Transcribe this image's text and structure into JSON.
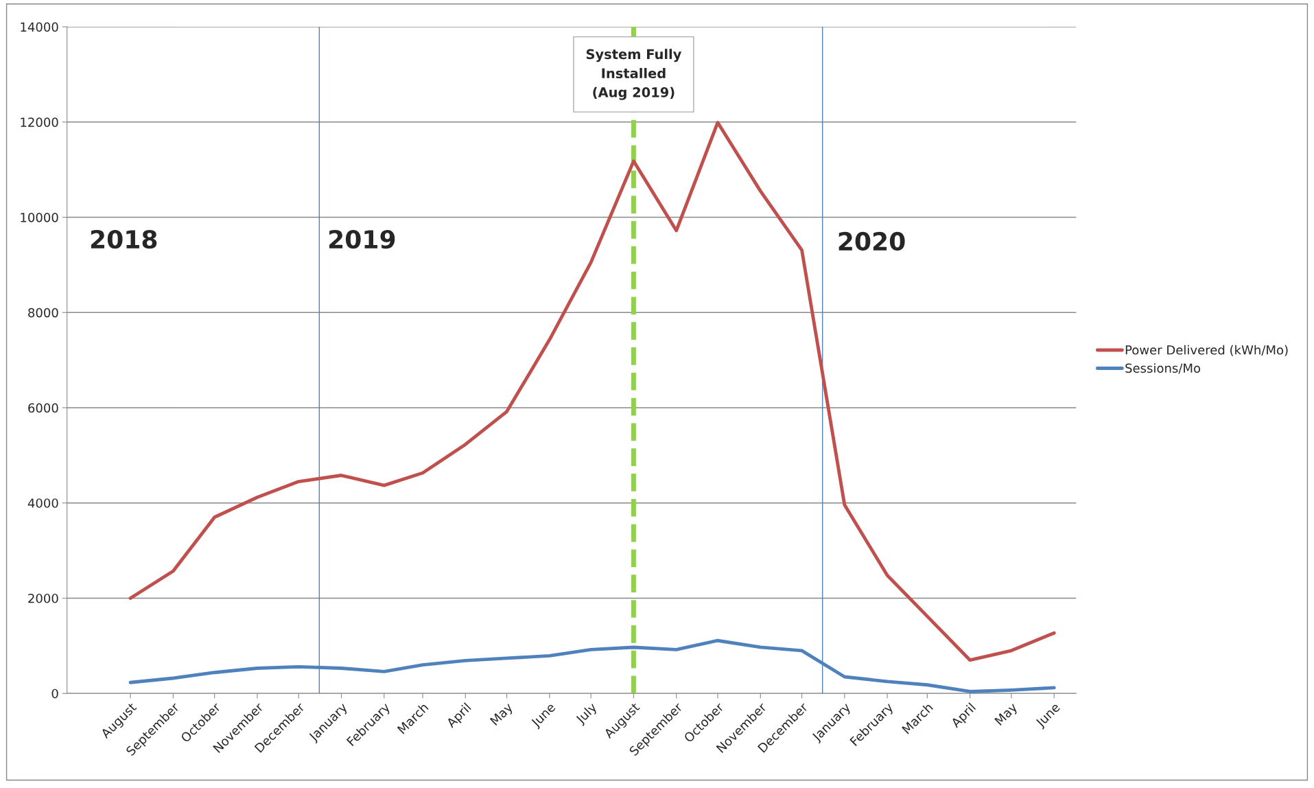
{
  "chart_data": {
    "type": "line",
    "x": [
      "2018-08",
      "2018-09",
      "2018-10",
      "2018-11",
      "2018-12",
      "2019-01",
      "2019-02",
      "2019-03",
      "2019-04",
      "2019-05",
      "2019-06",
      "2019-07",
      "2019-08",
      "2019-09",
      "2019-10",
      "2019-11",
      "2019-12",
      "2020-01",
      "2020-02",
      "2020-03",
      "2020-04",
      "2020-05",
      "2020-06"
    ],
    "series": [
      {
        "name": "Power Delivered (kWh/Mo)",
        "color": "#c0504d",
        "values": [
          2000,
          2570,
          3700,
          4120,
          4450,
          4580,
          4370,
          4630,
          5230,
          5920,
          7430,
          9050,
          11180,
          9720,
          11990,
          10550,
          9310,
          3960,
          2480,
          1620,
          700,
          900,
          1270
        ]
      },
      {
        "name": "Sessions/Mo",
        "color": "#4f81bd",
        "values": [
          230,
          320,
          440,
          530,
          560,
          530,
          460,
          600,
          690,
          740,
          790,
          920,
          970,
          920,
          1110,
          970,
          900,
          350,
          250,
          180,
          40,
          70,
          120
        ]
      }
    ],
    "xlim": [
      "2018-06-16",
      "2020-06-17"
    ],
    "xticks": [
      {
        "value": "2018-08",
        "label": "August"
      },
      {
        "value": "2018-09",
        "label": "September"
      },
      {
        "value": "2018-10",
        "label": "October"
      },
      {
        "value": "2018-11",
        "label": "November"
      },
      {
        "value": "2018-12",
        "label": "December"
      },
      {
        "value": "2019-01",
        "label": "January"
      },
      {
        "value": "2019-02",
        "label": "February"
      },
      {
        "value": "2019-03",
        "label": "March"
      },
      {
        "value": "2019-04",
        "label": "April"
      },
      {
        "value": "2019-05",
        "label": "May"
      },
      {
        "value": "2019-06",
        "label": "June"
      },
      {
        "value": "2019-07",
        "label": "July"
      },
      {
        "value": "2019-08",
        "label": "August"
      },
      {
        "value": "2019-09",
        "label": "September"
      },
      {
        "value": "2019-10",
        "label": "October"
      },
      {
        "value": "2019-11",
        "label": "November"
      },
      {
        "value": "2019-12",
        "label": "December"
      },
      {
        "value": "2020-01",
        "label": "January"
      },
      {
        "value": "2020-02",
        "label": "February"
      },
      {
        "value": "2020-03",
        "label": "March"
      },
      {
        "value": "2020-04",
        "label": "April"
      },
      {
        "value": "2020-05",
        "label": "May"
      },
      {
        "value": "2020-06",
        "label": "June"
      }
    ],
    "ylim": [
      0,
      14000
    ],
    "yticks": [
      0,
      2000,
      4000,
      6000,
      8000,
      10000,
      12000,
      14000
    ],
    "grid": "y",
    "legend": "right",
    "marker": "none",
    "line_style": "solid",
    "ref_lines": [
      {
        "axis": "x",
        "value": "2018-12-16",
        "color": "#4f81bd",
        "line_style": "solid"
      },
      {
        "axis": "x",
        "value": "2019-12-16",
        "color": "#4f81bd",
        "line_style": "solid"
      },
      {
        "axis": "x",
        "value": "2019-08",
        "color": "#92d050",
        "line_style": "dashed"
      }
    ],
    "annotations": [
      "2018",
      "2019",
      "2020",
      {
        "text": "System Fully\nInstalled\n(Aug 2019)",
        "x": "2019-08",
        "y": 13000
      }
    ]
  }
}
